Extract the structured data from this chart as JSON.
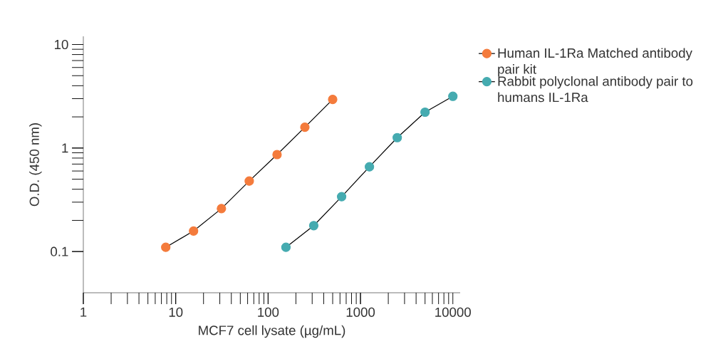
{
  "chart_data": {
    "type": "line",
    "xlabel": "MCF7 cell lysate (µg/mL)",
    "ylabel": "O.D. (450 nm)",
    "log": "xy",
    "xlim": [
      1,
      12000
    ],
    "ylim": [
      0.04,
      12
    ],
    "xticks": [
      1,
      10,
      100,
      1000,
      10000
    ],
    "yticks": [
      0.1,
      1,
      10
    ],
    "marker": "circle",
    "line_style": "solid",
    "legend": "top right",
    "grid": false,
    "series": [
      {
        "name": "Human IL-1Ra Matched antibody pair kit",
        "color": "#f47b3c",
        "x": [
          7.8,
          15.6,
          31.25,
          62.5,
          125,
          250,
          500
        ],
        "values": [
          0.11,
          0.158,
          0.26,
          0.48,
          0.865,
          1.59,
          2.95
        ]
      },
      {
        "name": "Rabbit polyclonal antibody pair to humans IL-1Ra",
        "color": "#45abb0",
        "x": [
          156,
          312,
          625,
          1250,
          2500,
          5000,
          10000
        ],
        "values": [
          0.11,
          0.178,
          0.339,
          0.659,
          1.26,
          2.22,
          3.16
        ]
      }
    ]
  }
}
